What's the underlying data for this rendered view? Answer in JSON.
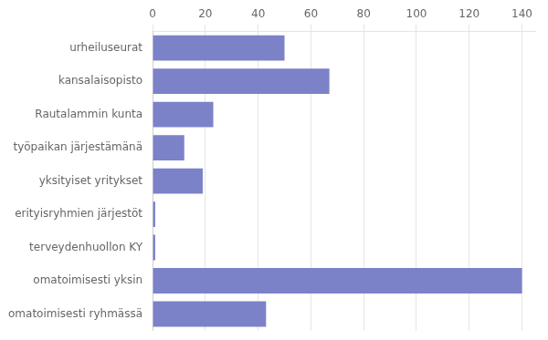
{
  "chart_data": {
    "type": "bar",
    "orientation": "horizontal",
    "categories": [
      "omatoimisesti ryhmässä",
      "omatoimisesti yksin",
      "terveydenhuollon KY",
      "erityisryhmien järjestöt",
      "yksityiset yritykset",
      "työpaikan järjestämänä",
      "Rautalammin kunta",
      "kansalaisopisto",
      "urheiluseurat"
    ],
    "values": [
      43,
      140,
      1,
      1,
      19,
      12,
      23,
      67,
      50
    ],
    "color": "#7b82c8",
    "xlim": [
      0,
      145
    ],
    "xticks": [
      0,
      20,
      40,
      60,
      80,
      100,
      120,
      140
    ],
    "grid": true
  }
}
